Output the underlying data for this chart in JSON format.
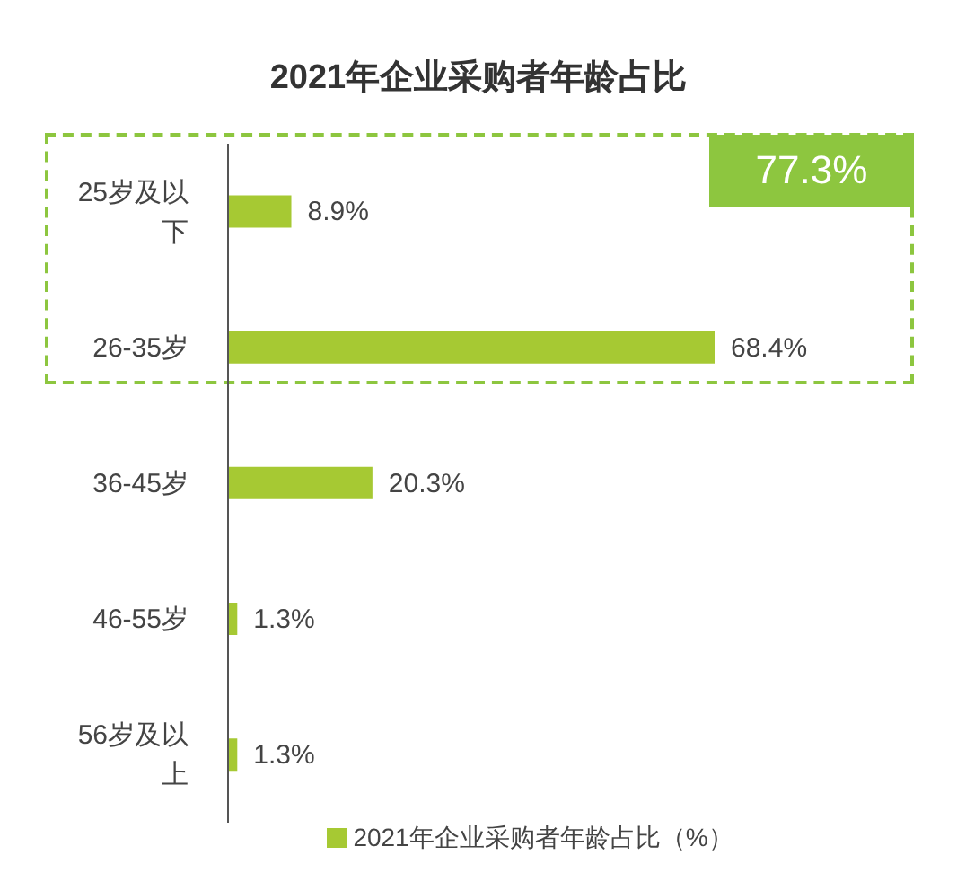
{
  "chart_data": {
    "type": "bar",
    "orientation": "horizontal",
    "title": "2021年企业采购者年龄占比",
    "categories": [
      "25岁及以下",
      "26-35岁",
      "36-45岁",
      "46-55岁",
      "56岁及以上"
    ],
    "series": [
      {
        "name": "2021年企业采购者年龄占比（%）",
        "color": "#a6c933",
        "values": [
          8.9,
          68.4,
          20.3,
          1.3,
          1.3
        ],
        "value_labels": [
          "8.9%",
          "68.4%",
          "20.3%",
          "1.3%",
          "1.3%"
        ]
      }
    ],
    "annotations": [
      "77.3%"
    ],
    "legend": "bottom",
    "grid": false
  }
}
